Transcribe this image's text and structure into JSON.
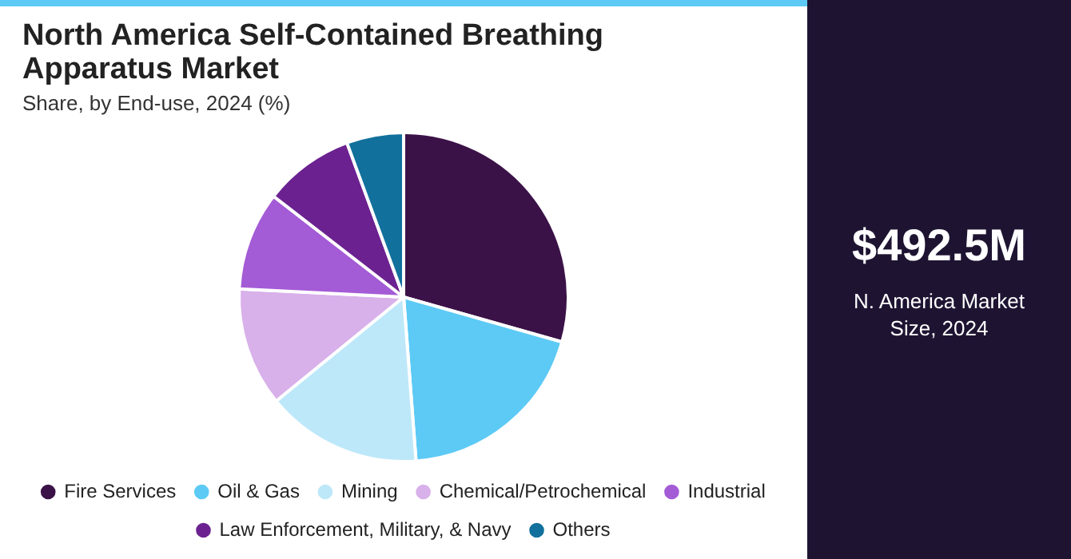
{
  "chart_data": {
    "type": "pie",
    "title": "North America Self-Contained Breathing Apparatus Market",
    "subtitle": "Share, by End-use, 2024 (%)",
    "categories": [
      "Fire Services",
      "Oil & Gas",
      "Mining",
      "Chemical/Petrochemical",
      "Industrial",
      "Law Enforcement, Military, & Navy",
      "Others"
    ],
    "values": [
      29.4,
      19.4,
      15.3,
      11.7,
      9.7,
      8.9,
      5.6
    ],
    "colors": [
      "#3b1248",
      "#5ccaf5",
      "#bde8f9",
      "#d8b0ea",
      "#a45bd6",
      "#6b2290",
      "#12709c"
    ],
    "legend": "bottom",
    "annotations": [
      "$492.5M",
      "N. America Market Size, 2024"
    ]
  }
}
